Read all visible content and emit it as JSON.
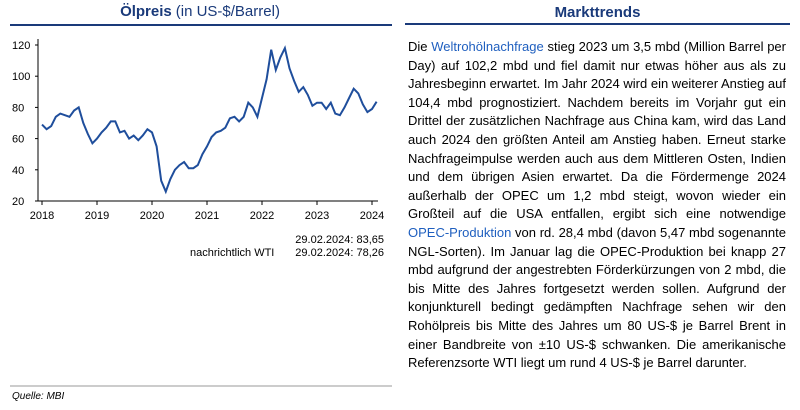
{
  "chart_data": {
    "type": "line",
    "title": "Ölpreis",
    "subtitle": "(in US-$/Barrel)",
    "color": "#1f4e9c",
    "x": [
      2018,
      2018.083,
      2018.167,
      2018.25,
      2018.333,
      2018.417,
      2018.5,
      2018.583,
      2018.667,
      2018.75,
      2018.833,
      2018.917,
      2019,
      2019.083,
      2019.167,
      2019.25,
      2019.333,
      2019.417,
      2019.5,
      2019.583,
      2019.667,
      2019.75,
      2019.833,
      2019.917,
      2020,
      2020.083,
      2020.167,
      2020.25,
      2020.333,
      2020.417,
      2020.5,
      2020.583,
      2020.667,
      2020.75,
      2020.833,
      2020.917,
      2021,
      2021.083,
      2021.167,
      2021.25,
      2021.333,
      2021.417,
      2021.5,
      2021.583,
      2021.667,
      2021.75,
      2021.833,
      2021.917,
      2022,
      2022.083,
      2022.167,
      2022.25,
      2022.333,
      2022.417,
      2022.5,
      2022.583,
      2022.667,
      2022.75,
      2022.833,
      2022.917,
      2023,
      2023.083,
      2023.167,
      2023.25,
      2023.333,
      2023.417,
      2023.5,
      2023.583,
      2023.667,
      2023.75,
      2023.833,
      2023.917,
      2024,
      2024.083
    ],
    "values": [
      69,
      66,
      68,
      74,
      76,
      75,
      74,
      78,
      80,
      70,
      63,
      57,
      60,
      64,
      67,
      71,
      71,
      64,
      65,
      60,
      62,
      59,
      62,
      66,
      64,
      55,
      33,
      26,
      34,
      40,
      43,
      45,
      41,
      41,
      43,
      50,
      55,
      61,
      64,
      65,
      67,
      73,
      74,
      71,
      74,
      83,
      80,
      74,
      86,
      98,
      117,
      104,
      112,
      118,
      105,
      97,
      90,
      93,
      88,
      81,
      83,
      83,
      79,
      83,
      76,
      75,
      80,
      86,
      92,
      89,
      82,
      77,
      79,
      83.65
    ],
    "xlim": [
      2018,
      2024
    ],
    "xticks": [
      2018,
      2019,
      2020,
      2021,
      2022,
      2023,
      2024
    ],
    "ylim": [
      20,
      120
    ],
    "yticks": [
      20,
      40,
      60,
      80,
      100,
      120
    ],
    "annotations": [
      "29.02.2024: 83,65",
      "nachrichtlich WTI",
      "29.02.2024: 78,26"
    ]
  },
  "panel": {
    "title": "Markttrends",
    "segments": [
      "Die ",
      "Weltrohölnachfrage",
      " stieg 2023 um 3,5 mbd (Million Barrel per Day) auf 102,2 mbd und fiel damit nur etwas höher aus als zu Jahresbeginn erwartet. Im Jahr 2024 wird ein weiterer Anstieg auf 104,4 mbd prognostiziert. Nachdem bereits im Vorjahr gut ein Drittel der zusätzlichen Nachfrage aus China kam, wird das Land auch 2024 den größten Anteil am Anstieg haben. Erneut starke Nachfrageimpulse werden auch aus dem Mittleren Osten, Indien und dem übrigen Asien erwartet. Da die Fördermenge 2024 außerhalb der OPEC um 1,2 mbd steigt, wovon wieder ein Großteil auf die USA entfallen, ergibt sich eine notwendige ",
      "OPEC-Produktion",
      " von rd. 28,4 mbd (davon 5,47 mbd sogenannte NGL-Sorten). Im Januar lag die OPEC-Produktion bei knapp 27 mbd aufgrund der angestrebten Förderkürzungen von 2 mbd, die bis Mitte des Jahres fortgesetzt werden sollen. Aufgrund der konjunkturell bedingt gedämpften Nachfrage sehen wir den Rohölpreis bis Mitte des Jahres um 80 US-$ je Barrel Brent in einer Bandbreite von ±10 US-$ schwanken. Die amerikanische Referenzsorte WTI liegt um rund 4 US-$ je Barrel darunter."
    ]
  },
  "source": "Quelle: MBI"
}
